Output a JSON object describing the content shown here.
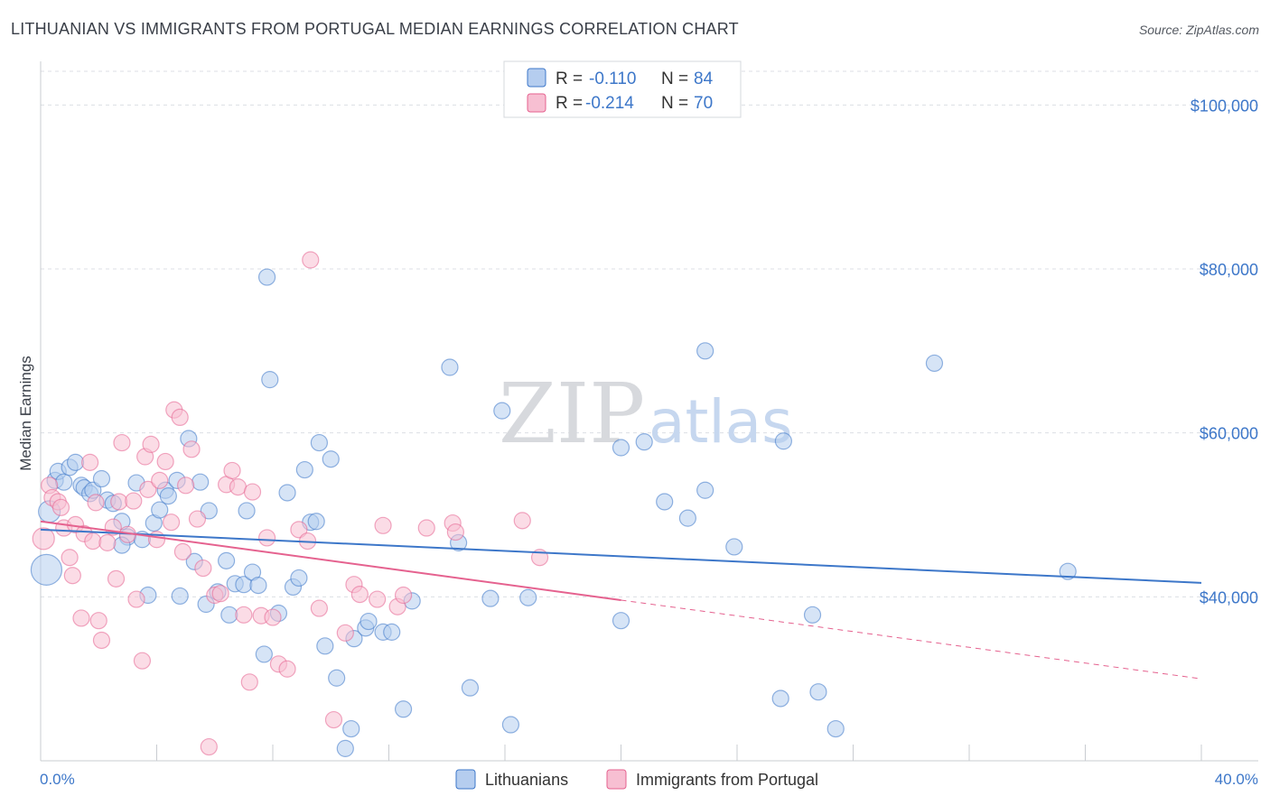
{
  "title": "LITHUANIAN VS IMMIGRANTS FROM PORTUGAL MEDIAN EARNINGS CORRELATION CHART",
  "source": "Source: ZipAtlas.com",
  "watermark": {
    "zip": "ZIP",
    "atlas": "atlas"
  },
  "colors": {
    "blue": "#3d77c9",
    "blue_fill": "#b5cdef",
    "pink": "#e5628f",
    "pink_fill": "#f7bfd2",
    "grid": "#dcdfe4"
  },
  "legend": {
    "r_label": "R =",
    "n_label": "N =",
    "rows": [
      {
        "r": "-0.110",
        "n": "84"
      },
      {
        "r": "-0.214",
        "n": "70"
      }
    ]
  },
  "chart_data": {
    "type": "scatter",
    "title": "LITHUANIAN VS IMMIGRANTS FROM PORTUGAL MEDIAN EARNINGS CORRELATION CHART",
    "xlabel": "",
    "ylabel": "Median Earnings",
    "xlim": [
      0,
      40
    ],
    "ylim": [
      20000,
      104000
    ],
    "x_tick_labels": [
      "0.0%",
      "40.0%"
    ],
    "y_ticks": [
      40000,
      60000,
      80000,
      100000
    ],
    "y_tick_labels": [
      "$40,000",
      "$60,000",
      "$80,000",
      "$100,000"
    ],
    "grid": true,
    "series": [
      {
        "name": "Lithuanians",
        "color": "#3d77c9",
        "trend": {
          "x": [
            0,
            40
          ],
          "y": [
            48200,
            41700
          ],
          "solid_until": 40
        },
        "points": [
          [
            0.2,
            43300
          ],
          [
            0.3,
            50400
          ],
          [
            0.5,
            54200
          ],
          [
            0.6,
            55300
          ],
          [
            0.8,
            54000
          ],
          [
            1.0,
            55800
          ],
          [
            1.2,
            56400
          ],
          [
            1.4,
            53600
          ],
          [
            1.5,
            53300
          ],
          [
            1.7,
            52600
          ],
          [
            1.8,
            53000
          ],
          [
            2.1,
            54400
          ],
          [
            2.3,
            51800
          ],
          [
            2.5,
            51400
          ],
          [
            2.8,
            49200
          ],
          [
            3.0,
            47300
          ],
          [
            3.3,
            53900
          ],
          [
            3.5,
            47000
          ],
          [
            2.8,
            46300
          ],
          [
            3.7,
            40200
          ],
          [
            3.9,
            49000
          ],
          [
            4.1,
            50600
          ],
          [
            4.3,
            53000
          ],
          [
            4.4,
            52300
          ],
          [
            4.7,
            54200
          ],
          [
            4.8,
            40100
          ],
          [
            5.1,
            59300
          ],
          [
            5.3,
            44300
          ],
          [
            5.5,
            54000
          ],
          [
            5.7,
            39100
          ],
          [
            5.8,
            50500
          ],
          [
            6.1,
            40600
          ],
          [
            6.4,
            44400
          ],
          [
            6.5,
            37800
          ],
          [
            6.7,
            41600
          ],
          [
            7.0,
            41500
          ],
          [
            7.1,
            50500
          ],
          [
            7.3,
            43000
          ],
          [
            7.5,
            41400
          ],
          [
            7.7,
            33000
          ],
          [
            7.8,
            79000
          ],
          [
            7.9,
            66500
          ],
          [
            8.2,
            38000
          ],
          [
            8.5,
            52700
          ],
          [
            8.7,
            41200
          ],
          [
            8.9,
            42300
          ],
          [
            9.1,
            55500
          ],
          [
            9.3,
            49100
          ],
          [
            9.5,
            49200
          ],
          [
            9.6,
            58800
          ],
          [
            9.8,
            34000
          ],
          [
            10.0,
            56800
          ],
          [
            10.2,
            30100
          ],
          [
            10.5,
            21500
          ],
          [
            10.7,
            23900
          ],
          [
            10.8,
            34900
          ],
          [
            11.2,
            36200
          ],
          [
            11.3,
            37000
          ],
          [
            11.8,
            35700
          ],
          [
            12.1,
            35700
          ],
          [
            12.5,
            26300
          ],
          [
            12.8,
            39500
          ],
          [
            14.1,
            68000
          ],
          [
            14.4,
            46600
          ],
          [
            14.8,
            28900
          ],
          [
            15.5,
            39800
          ],
          [
            15.9,
            62700
          ],
          [
            16.2,
            24400
          ],
          [
            16.8,
            39900
          ],
          [
            20.0,
            58200
          ],
          [
            20.0,
            37100
          ],
          [
            20.8,
            58900
          ],
          [
            21.5,
            51600
          ],
          [
            22.3,
            49600
          ],
          [
            22.9,
            70000
          ],
          [
            22.9,
            53000
          ],
          [
            23.9,
            46100
          ],
          [
            25.6,
            59000
          ],
          [
            25.5,
            27600
          ],
          [
            26.6,
            37800
          ],
          [
            26.8,
            28400
          ],
          [
            27.4,
            23900
          ],
          [
            30.8,
            68500
          ],
          [
            35.4,
            43100
          ]
        ]
      },
      {
        "name": "Immigrants from Portugal",
        "color": "#e5628f",
        "trend": {
          "x": [
            0,
            40
          ],
          "y": [
            49200,
            30000
          ],
          "solid_until": 20
        },
        "points": [
          [
            0.1,
            47100
          ],
          [
            0.3,
            53600
          ],
          [
            0.4,
            52100
          ],
          [
            0.6,
            51600
          ],
          [
            0.7,
            50900
          ],
          [
            0.8,
            48400
          ],
          [
            1.0,
            44800
          ],
          [
            1.1,
            42600
          ],
          [
            1.2,
            48800
          ],
          [
            1.4,
            37400
          ],
          [
            1.5,
            47700
          ],
          [
            1.7,
            56400
          ],
          [
            1.8,
            46800
          ],
          [
            1.9,
            51500
          ],
          [
            2.0,
            37100
          ],
          [
            2.1,
            34700
          ],
          [
            2.3,
            46600
          ],
          [
            2.5,
            48500
          ],
          [
            2.6,
            42200
          ],
          [
            2.7,
            51600
          ],
          [
            2.8,
            58800
          ],
          [
            3.0,
            47600
          ],
          [
            3.2,
            51700
          ],
          [
            3.3,
            39700
          ],
          [
            3.5,
            32200
          ],
          [
            3.6,
            57100
          ],
          [
            3.7,
            53100
          ],
          [
            3.8,
            58600
          ],
          [
            4.0,
            47000
          ],
          [
            4.1,
            54200
          ],
          [
            4.3,
            56500
          ],
          [
            4.5,
            49100
          ],
          [
            4.6,
            62800
          ],
          [
            4.8,
            61900
          ],
          [
            4.9,
            45500
          ],
          [
            5.0,
            53600
          ],
          [
            5.2,
            58000
          ],
          [
            5.4,
            49500
          ],
          [
            5.6,
            43500
          ],
          [
            5.8,
            21700
          ],
          [
            6.0,
            40200
          ],
          [
            6.2,
            40400
          ],
          [
            6.4,
            53700
          ],
          [
            6.6,
            55400
          ],
          [
            6.8,
            53400
          ],
          [
            7.0,
            37800
          ],
          [
            7.2,
            29600
          ],
          [
            7.3,
            52800
          ],
          [
            7.6,
            37700
          ],
          [
            7.8,
            47200
          ],
          [
            8.0,
            37500
          ],
          [
            8.2,
            31800
          ],
          [
            8.5,
            31200
          ],
          [
            8.9,
            48200
          ],
          [
            9.2,
            46800
          ],
          [
            9.3,
            81100
          ],
          [
            9.6,
            38600
          ],
          [
            10.1,
            25000
          ],
          [
            10.5,
            35600
          ],
          [
            10.8,
            41500
          ],
          [
            11.0,
            40300
          ],
          [
            11.6,
            39700
          ],
          [
            11.8,
            48700
          ],
          [
            12.3,
            38800
          ],
          [
            12.5,
            40200
          ],
          [
            13.3,
            48400
          ],
          [
            14.2,
            49000
          ],
          [
            14.3,
            47900
          ],
          [
            16.6,
            49300
          ],
          [
            17.2,
            44800
          ]
        ]
      }
    ]
  },
  "bottom_legend": [
    "Lithuanians",
    "Immigrants from Portugal"
  ]
}
